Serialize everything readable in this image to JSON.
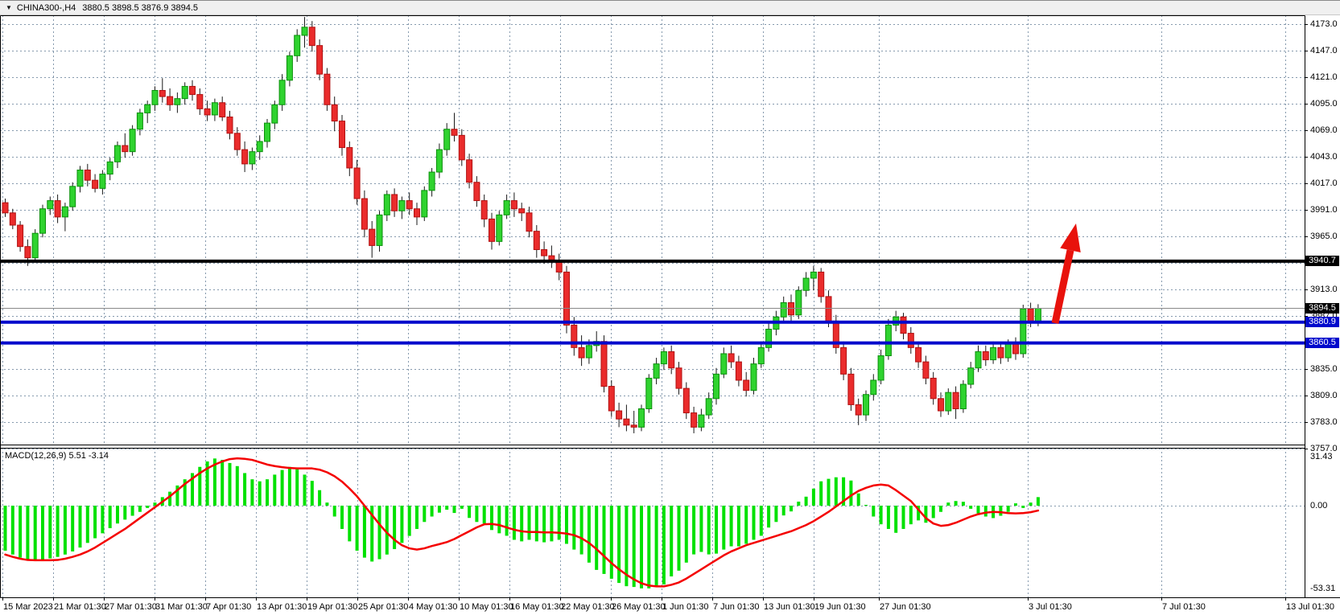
{
  "window": {
    "title_symbol_period": "CHINA300-,H4",
    "title_quotes": "3880.5 3898.5 3876.9 3894.5",
    "dropdown_glyph": "▼"
  },
  "price_axis": {
    "tick_labels": [
      "4173.0",
      "4147.0",
      "4121.0",
      "4095.0",
      "4069.0",
      "4043.0",
      "4017.0",
      "3991.0",
      "3965.0",
      "3913.0",
      "3887.0",
      "3835.0",
      "3809.0",
      "3783.0",
      "3757.0"
    ],
    "badges": [
      {
        "text": "3940.7",
        "bg": "#000000"
      },
      {
        "text": "3894.5",
        "bg": "#000000"
      },
      {
        "text": "3880.9",
        "bg": "#0009cc"
      },
      {
        "text": "3860.5",
        "bg": "#0009cc"
      }
    ]
  },
  "time_axis": {
    "labels": [
      "15 Mar 2023",
      "21 Mar 01:30",
      "27 Mar 01:30",
      "31 Mar 01:30",
      "7 Apr 01:30",
      "13 Apr 01:30",
      "19 Apr 01:30",
      "25 Apr 01:30",
      "4 May 01:30",
      "10 May 01:30",
      "16 May 01:30",
      "22 May 01:30",
      "26 May 01:30",
      "1 Jun 01:30",
      "7 Jun 01:30",
      "13 Jun 01:30",
      "19 Jun 01:30",
      "27 Jun 01:30",
      "3 Jul 01:30",
      "7 Jul 01:30",
      "13 Jul 01:30"
    ]
  },
  "macd_panel": {
    "label": "MACD(12,26,9) 5.51 -3.14",
    "scale_labels": [
      "31.43",
      "0.00",
      "-53.31"
    ]
  },
  "colors": {
    "grid": "#8599ad",
    "bull_fill": "#2fd32f",
    "bull_stroke": "#0b8f0b",
    "bear_fill": "#ea2c2c",
    "bear_stroke": "#b01010",
    "wick": "#1a1a1a",
    "macd_hist": "#00e100",
    "macd_signal": "#f40000",
    "arrow": "#e8120c",
    "level_black": "#000000",
    "level_blue": "#0009cc",
    "current_price_line": "#888888"
  },
  "chart_data": {
    "type": "candlestick+macd",
    "symbol": "CHINA300-",
    "period": "H4",
    "price_ylim": [
      3757,
      4173
    ],
    "price_tick_step": 26,
    "price_grid_ticks": [
      4173,
      4147,
      4121,
      4095,
      4069,
      4043,
      4017,
      3991,
      3965,
      3939,
      3913,
      3887,
      3861,
      3835,
      3809,
      3783,
      3757
    ],
    "time_grid_x": [
      3,
      66,
      129,
      192,
      255,
      318,
      381,
      444,
      507,
      570,
      633,
      696,
      759,
      822,
      885,
      948,
      1011,
      1092,
      1277,
      1443,
      1597
    ],
    "levels": [
      {
        "price": 3940.7,
        "color": "#000000",
        "width": 4,
        "name": "resistance-level-line"
      },
      {
        "price": 3894.5,
        "color": "#888888",
        "width": 1,
        "name": "current-price-line"
      },
      {
        "price": 3880.9,
        "color": "#0009cc",
        "width": 4,
        "name": "support-level-line-1"
      },
      {
        "price": 3860.5,
        "color": "#0009cc",
        "width": 4,
        "name": "support-level-line-2"
      }
    ],
    "arrow_annotation": {
      "from": [
        1311,
        401
      ],
      "to": [
        1337,
        277
      ],
      "color": "#e8120c"
    },
    "macd": {
      "ylim": [
        -53.31,
        31.43
      ],
      "last_macd": 5.51,
      "last_signal": -3.14,
      "histogram": [
        -29,
        -31.5,
        -33.5,
        -35,
        -35.5,
        -35,
        -34,
        -33,
        -31.5,
        -29.5,
        -27,
        -24,
        -21,
        -17.8,
        -14.5,
        -11.5,
        -9,
        -6.5,
        -4,
        -1.5,
        2,
        5.5,
        9,
        13,
        17,
        21,
        25,
        28.5,
        30.4,
        29.5,
        27.5,
        25.5,
        21,
        17,
        15.7,
        17,
        20,
        23,
        25,
        23.5,
        20,
        16,
        10,
        2,
        -7,
        -15,
        -23,
        -29,
        -33.5,
        -36,
        -34.5,
        -31.5,
        -28,
        -24,
        -19.5,
        -15,
        -10.5,
        -7,
        -4.5,
        -2.6,
        -4.7,
        -2,
        -7.9,
        -10.5,
        -11.5,
        -15.7,
        -17.8,
        -19.4,
        -22,
        -23,
        -22,
        -23,
        -23.6,
        -23,
        -22,
        -24.6,
        -28.3,
        -31.4,
        -36.7,
        -41.4,
        -44,
        -47.1,
        -49.8,
        -51.9,
        -52.4,
        -53.3,
        -53.3,
        -52.4,
        -50.8,
        -45.6,
        -41.9,
        -36.7,
        -31.4,
        -29.8,
        -31.4,
        -30.9,
        -28.3,
        -26.2,
        -26.2,
        -24.6,
        -22,
        -19.4,
        -14.1,
        -10.5,
        -6.3,
        -3.7,
        2.6,
        5.8,
        11,
        15.7,
        17.3,
        18.3,
        18.3,
        16.2,
        7.9,
        0.5,
        -7,
        -12,
        -15,
        -17.5,
        -15,
        -12,
        -9.5,
        -11,
        -8,
        -4,
        2,
        3,
        2.5,
        -2,
        -5,
        -7,
        -8,
        -6.5,
        -4,
        1.5,
        -1.5,
        2,
        5.51
      ],
      "signal": [
        -31.5,
        -33,
        -34.2,
        -35,
        -35.2,
        -35.2,
        -35.2,
        -35,
        -34.2,
        -33,
        -31.5,
        -29.5,
        -27,
        -24,
        -21,
        -18,
        -15,
        -11.5,
        -8,
        -4.5,
        -1,
        2.5,
        6,
        10,
        14,
        17.5,
        21,
        24,
        26.5,
        28.5,
        30,
        30.5,
        30.2,
        29.5,
        28,
        26.5,
        25.5,
        24.8,
        24.3,
        24,
        24,
        24,
        23.2,
        21.5,
        19,
        15.5,
        11,
        6,
        0,
        -6,
        -12,
        -17.5,
        -22,
        -25.5,
        -27.5,
        -28.3,
        -27.5,
        -26,
        -24.8,
        -23.5,
        -21.5,
        -19,
        -16.5,
        -14,
        -12,
        -11.8,
        -12.5,
        -14,
        -15.5,
        -16.5,
        -17,
        -17,
        -17.2,
        -17.2,
        -17.5,
        -18,
        -19,
        -21,
        -24,
        -28,
        -32.5,
        -37,
        -41,
        -44.5,
        -47.5,
        -50,
        -51.5,
        -52,
        -52,
        -51,
        -49.5,
        -47,
        -44,
        -41,
        -38,
        -35,
        -32,
        -29.5,
        -27.5,
        -25.5,
        -24,
        -22.5,
        -21,
        -19.5,
        -18,
        -16.5,
        -14.5,
        -12.5,
        -10,
        -7,
        -4,
        -0.5,
        3,
        6.5,
        9.5,
        11.5,
        13,
        13.6,
        13,
        10,
        6.5,
        3,
        -2.5,
        -8,
        -11.5,
        -13,
        -12.5,
        -11,
        -9,
        -7,
        -5.5,
        -4.5,
        -4,
        -4.2,
        -4.8,
        -5,
        -4.8,
        -4.2,
        -3.14
      ]
    },
    "candles": [
      [
        3998,
        4002,
        3984,
        3988
      ],
      [
        3988,
        3992,
        3972,
        3976
      ],
      [
        3976,
        3980,
        3950,
        3955
      ],
      [
        3955,
        3962,
        3936,
        3944
      ],
      [
        3944,
        3972,
        3940,
        3968
      ],
      [
        3968,
        3996,
        3964,
        3992
      ],
      [
        3992,
        4004,
        3986,
        4000
      ],
      [
        4000,
        4006,
        3978,
        3984
      ],
      [
        3984,
        3998,
        3970,
        3994
      ],
      [
        3994,
        4018,
        3990,
        4014
      ],
      [
        4014,
        4034,
        4008,
        4030
      ],
      [
        4030,
        4036,
        4014,
        4020
      ],
      [
        4020,
        4026,
        4008,
        4012
      ],
      [
        4012,
        4030,
        4006,
        4026
      ],
      [
        4026,
        4042,
        4020,
        4038
      ],
      [
        4038,
        4058,
        4032,
        4054
      ],
      [
        4054,
        4066,
        4042,
        4048
      ],
      [
        4048,
        4074,
        4044,
        4070
      ],
      [
        4070,
        4090,
        4064,
        4086
      ],
      [
        4086,
        4098,
        4076,
        4094
      ],
      [
        4094,
        4112,
        4088,
        4108
      ],
      [
        4108,
        4120,
        4096,
        4102
      ],
      [
        4102,
        4110,
        4088,
        4094
      ],
      [
        4094,
        4106,
        4086,
        4100
      ],
      [
        4100,
        4116,
        4094,
        4112
      ],
      [
        4112,
        4118,
        4098,
        4104
      ],
      [
        4104,
        4110,
        4084,
        4090
      ],
      [
        4090,
        4098,
        4078,
        4084
      ],
      [
        4084,
        4100,
        4078,
        4096
      ],
      [
        4096,
        4102,
        4078,
        4082
      ],
      [
        4082,
        4088,
        4060,
        4066
      ],
      [
        4066,
        4072,
        4044,
        4050
      ],
      [
        4050,
        4058,
        4028,
        4036
      ],
      [
        4036,
        4052,
        4030,
        4048
      ],
      [
        4048,
        4064,
        4040,
        4058
      ],
      [
        4058,
        4080,
        4052,
        4076
      ],
      [
        4076,
        4098,
        4070,
        4094
      ],
      [
        4094,
        4124,
        4088,
        4118
      ],
      [
        4118,
        4146,
        4112,
        4142
      ],
      [
        4142,
        4168,
        4136,
        4162
      ],
      [
        4162,
        4180,
        4150,
        4170
      ],
      [
        4170,
        4176,
        4146,
        4152
      ],
      [
        4152,
        4158,
        4118,
        4124
      ],
      [
        4124,
        4130,
        4088,
        4094
      ],
      [
        4094,
        4102,
        4068,
        4078
      ],
      [
        4078,
        4084,
        4044,
        4052
      ],
      [
        4052,
        4058,
        4024,
        4032
      ],
      [
        4032,
        4040,
        3996,
        4002
      ],
      [
        4002,
        4010,
        3964,
        3972
      ],
      [
        3972,
        3980,
        3944,
        3956
      ],
      [
        3956,
        3990,
        3950,
        3986
      ],
      [
        3986,
        4010,
        3980,
        4006
      ],
      [
        4006,
        4012,
        3984,
        3990
      ],
      [
        3990,
        4004,
        3982,
        4000
      ],
      [
        4000,
        4008,
        3986,
        3992
      ],
      [
        3992,
        3998,
        3976,
        3984
      ],
      [
        3984,
        4014,
        3980,
        4010
      ],
      [
        4010,
        4032,
        4004,
        4028
      ],
      [
        4028,
        4056,
        4022,
        4050
      ],
      [
        4050,
        4076,
        4044,
        4070
      ],
      [
        4070,
        4086,
        4058,
        4064
      ],
      [
        4064,
        4070,
        4034,
        4040
      ],
      [
        4040,
        4046,
        4012,
        4018
      ],
      [
        4018,
        4024,
        3994,
        4000
      ],
      [
        4000,
        4006,
        3974,
        3982
      ],
      [
        3982,
        3988,
        3952,
        3960
      ],
      [
        3960,
        3990,
        3956,
        3986
      ],
      [
        3986,
        4006,
        3982,
        4000
      ],
      [
        4000,
        4008,
        3984,
        3992
      ],
      [
        3992,
        3998,
        3980,
        3988
      ],
      [
        3988,
        3994,
        3964,
        3970
      ],
      [
        3970,
        3976,
        3944,
        3952
      ],
      [
        3952,
        3960,
        3938,
        3946
      ],
      [
        3946,
        3956,
        3934,
        3940
      ],
      [
        3940,
        3948,
        3922,
        3930
      ],
      [
        3930,
        3936,
        3870,
        3878
      ],
      [
        3878,
        3886,
        3848,
        3856
      ],
      [
        3856,
        3868,
        3838,
        3846
      ],
      [
        3846,
        3864,
        3840,
        3858
      ],
      [
        3858,
        3872,
        3852,
        3862
      ],
      [
        3862,
        3868,
        3812,
        3818
      ],
      [
        3818,
        3824,
        3788,
        3794
      ],
      [
        3794,
        3802,
        3778,
        3786
      ],
      [
        3786,
        3800,
        3774,
        3780
      ],
      [
        3780,
        3794,
        3772,
        3778
      ],
      [
        3778,
        3800,
        3774,
        3796
      ],
      [
        3796,
        3830,
        3792,
        3826
      ],
      [
        3826,
        3846,
        3820,
        3840
      ],
      [
        3840,
        3856,
        3834,
        3852
      ],
      [
        3852,
        3858,
        3830,
        3836
      ],
      [
        3836,
        3842,
        3810,
        3816
      ],
      [
        3816,
        3822,
        3786,
        3792
      ],
      [
        3792,
        3798,
        3772,
        3778
      ],
      [
        3778,
        3796,
        3774,
        3790
      ],
      [
        3790,
        3812,
        3786,
        3806
      ],
      [
        3806,
        3836,
        3800,
        3830
      ],
      [
        3830,
        3856,
        3826,
        3850
      ],
      [
        3850,
        3858,
        3836,
        3842
      ],
      [
        3842,
        3848,
        3818,
        3824
      ],
      [
        3824,
        3832,
        3808,
        3814
      ],
      [
        3814,
        3846,
        3810,
        3840
      ],
      [
        3840,
        3862,
        3836,
        3856
      ],
      [
        3856,
        3880,
        3852,
        3874
      ],
      [
        3874,
        3892,
        3868,
        3886
      ],
      [
        3886,
        3906,
        3880,
        3900
      ],
      [
        3900,
        3908,
        3882,
        3888
      ],
      [
        3888,
        3916,
        3884,
        3912
      ],
      [
        3912,
        3930,
        3906,
        3924
      ],
      [
        3924,
        3936,
        3912,
        3930
      ],
      [
        3930,
        3934,
        3900,
        3906
      ],
      [
        3906,
        3912,
        3876,
        3882
      ],
      [
        3882,
        3888,
        3850,
        3856
      ],
      [
        3856,
        3862,
        3824,
        3830
      ],
      [
        3830,
        3836,
        3794,
        3800
      ],
      [
        3800,
        3806,
        3780,
        3790
      ],
      [
        3790,
        3814,
        3784,
        3810
      ],
      [
        3810,
        3830,
        3804,
        3824
      ],
      [
        3824,
        3854,
        3820,
        3848
      ],
      [
        3848,
        3884,
        3844,
        3878
      ],
      [
        3878,
        3892,
        3872,
        3886
      ],
      [
        3886,
        3890,
        3864,
        3870
      ],
      [
        3870,
        3876,
        3850,
        3856
      ],
      [
        3856,
        3862,
        3836,
        3842
      ],
      [
        3842,
        3848,
        3820,
        3826
      ],
      [
        3826,
        3832,
        3800,
        3806
      ],
      [
        3806,
        3812,
        3788,
        3794
      ],
      [
        3794,
        3816,
        3790,
        3812
      ],
      [
        3812,
        3818,
        3786,
        3796
      ],
      [
        3796,
        3824,
        3792,
        3820
      ],
      [
        3820,
        3842,
        3816,
        3836
      ],
      [
        3836,
        3858,
        3832,
        3852
      ],
      [
        3852,
        3858,
        3838,
        3844
      ],
      [
        3844,
        3862,
        3840,
        3856
      ],
      [
        3856,
        3860,
        3840,
        3846
      ],
      [
        3846,
        3864,
        3842,
        3860
      ],
      [
        3860,
        3866,
        3844,
        3850
      ],
      [
        3850,
        3898,
        3846,
        3894
      ],
      [
        3894,
        3900,
        3876,
        3880
      ],
      [
        3880.5,
        3898.5,
        3876.9,
        3894.5
      ]
    ]
  }
}
